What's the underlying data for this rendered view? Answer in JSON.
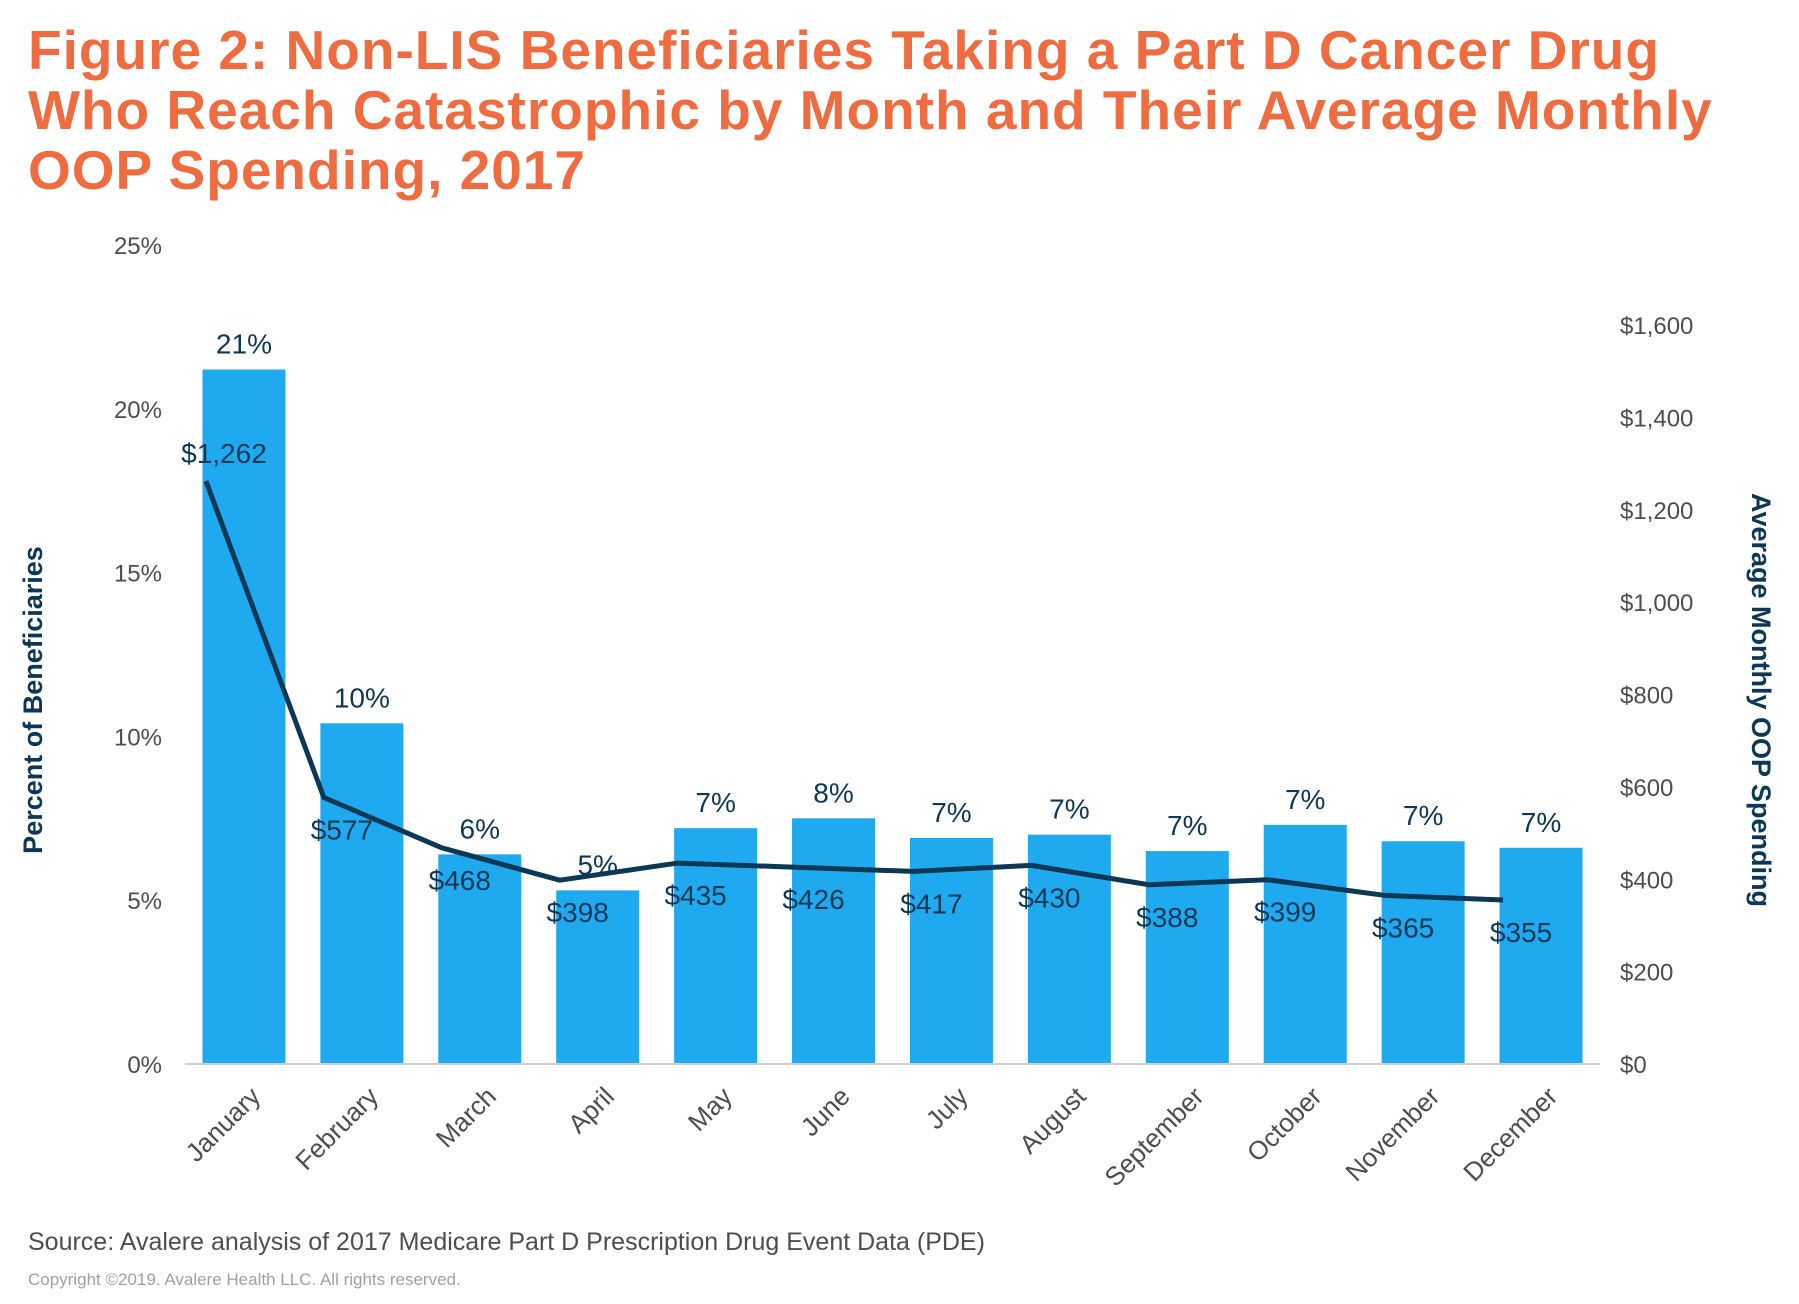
{
  "title": "Figure 2: Non-LIS Beneficiaries Taking a Part D Cancer Drug Who Reach Catastrophic by Month and Their Average Monthly OOP Spending, 2017",
  "source": "Source: Avalere analysis of 2017 Medicare Part D Prescription Drug Event Data (PDE)",
  "copyright": "Copyright ©2019. Avalere Health LLC. All rights reserved.",
  "colors": {
    "title": "#ee6c3f",
    "bar": "#1faaf0",
    "line": "#0c3755",
    "axis_text": "#4d4d4d"
  },
  "chart_data": {
    "type": "bar",
    "categories": [
      "January",
      "February",
      "March",
      "April",
      "May",
      "June",
      "July",
      "August",
      "September",
      "October",
      "November",
      "December"
    ],
    "left_axis": {
      "label": "Percent of Beneficiaries",
      "ylim": [
        0,
        25
      ],
      "ticks": [
        0,
        5,
        10,
        15,
        20,
        25
      ],
      "tick_labels": [
        "0%",
        "5%",
        "10%",
        "15%",
        "20%",
        "25%"
      ]
    },
    "right_axis": {
      "label": "Average Monthly OOP Spending",
      "ylim": [
        0,
        1600
      ],
      "ticks": [
        0,
        200,
        400,
        600,
        800,
        1000,
        1200,
        1400,
        1600
      ],
      "tick_labels": [
        "$0",
        "$200",
        "$400",
        "$600",
        "$800",
        "$1,000",
        "$1,200",
        "$1,400",
        "$1,600"
      ]
    },
    "series": [
      {
        "type": "bar",
        "axis": "left",
        "values": [
          21.2,
          10.4,
          6.4,
          5.3,
          7.2,
          7.5,
          6.9,
          7.0,
          6.5,
          7.3,
          6.8,
          6.6
        ],
        "data_labels": [
          "21%",
          "10%",
          "6%",
          "5%",
          "7%",
          "8%",
          "7%",
          "7%",
          "7%",
          "7%",
          "7%",
          "7%"
        ]
      },
      {
        "type": "line",
        "axis": "right",
        "values": [
          1262,
          577,
          468,
          398,
          435,
          426,
          417,
          430,
          388,
          399,
          365,
          355
        ],
        "data_labels": [
          "$1,262",
          "$577",
          "$468",
          "$398",
          "$435",
          "$426",
          "$417",
          "$430",
          "$388",
          "$399",
          "$365",
          "$355"
        ]
      }
    ],
    "grid": false
  }
}
